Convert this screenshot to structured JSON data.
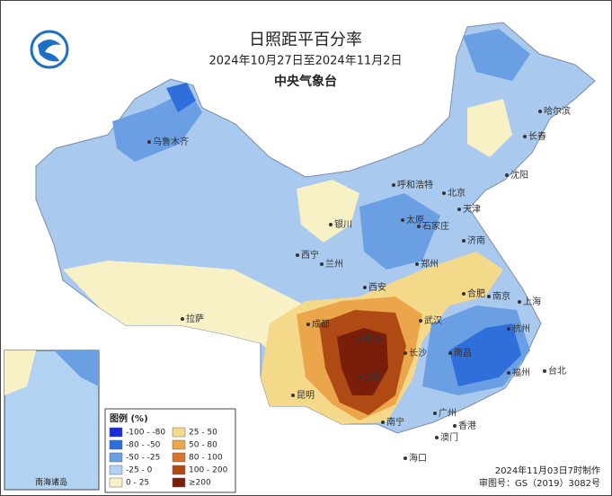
{
  "header": {
    "title": "日照距平百分率",
    "date_range": "2024年10月27日至2024年11月2日",
    "agency": "中央气象台"
  },
  "legend": {
    "title": "图例 (%)",
    "items": [
      {
        "label": "-100 - -80",
        "color": "#1b2bd9"
      },
      {
        "label": "-80 - -50",
        "color": "#2f6fdc"
      },
      {
        "label": "-50 - -25",
        "color": "#6a9fe3"
      },
      {
        "label": "-25 - 0",
        "color": "#b2d2f2"
      },
      {
        "label": "0 - 25",
        "color": "#f8f1c6"
      },
      {
        "label": "25 - 50",
        "color": "#f5d98a"
      },
      {
        "label": "50 - 80",
        "color": "#eba54a"
      },
      {
        "label": "80 - 100",
        "color": "#d9742a"
      },
      {
        "label": "100 - 200",
        "color": "#b04a14"
      },
      {
        "label": "≥200",
        "color": "#7a1e0c"
      }
    ]
  },
  "cities": [
    "乌鲁木齐",
    "哈尔滨",
    "长春",
    "沈阳",
    "呼和浩特",
    "北京",
    "天津",
    "石家庄",
    "太原",
    "银川",
    "济南",
    "西宁",
    "兰州",
    "郑州",
    "西安",
    "合肥",
    "南京",
    "上海",
    "拉萨",
    "成都",
    "重庆",
    "武汉",
    "杭州",
    "长沙",
    "南昌",
    "福州",
    "台北",
    "贵阳",
    "昆明",
    "南宁",
    "广州",
    "香港",
    "澳门",
    "海口"
  ],
  "inset": {
    "label": "南海诸岛"
  },
  "footer": {
    "made": "2024年11月03日7时制作",
    "approval": "审图号：GS（2019）3082号"
  }
}
